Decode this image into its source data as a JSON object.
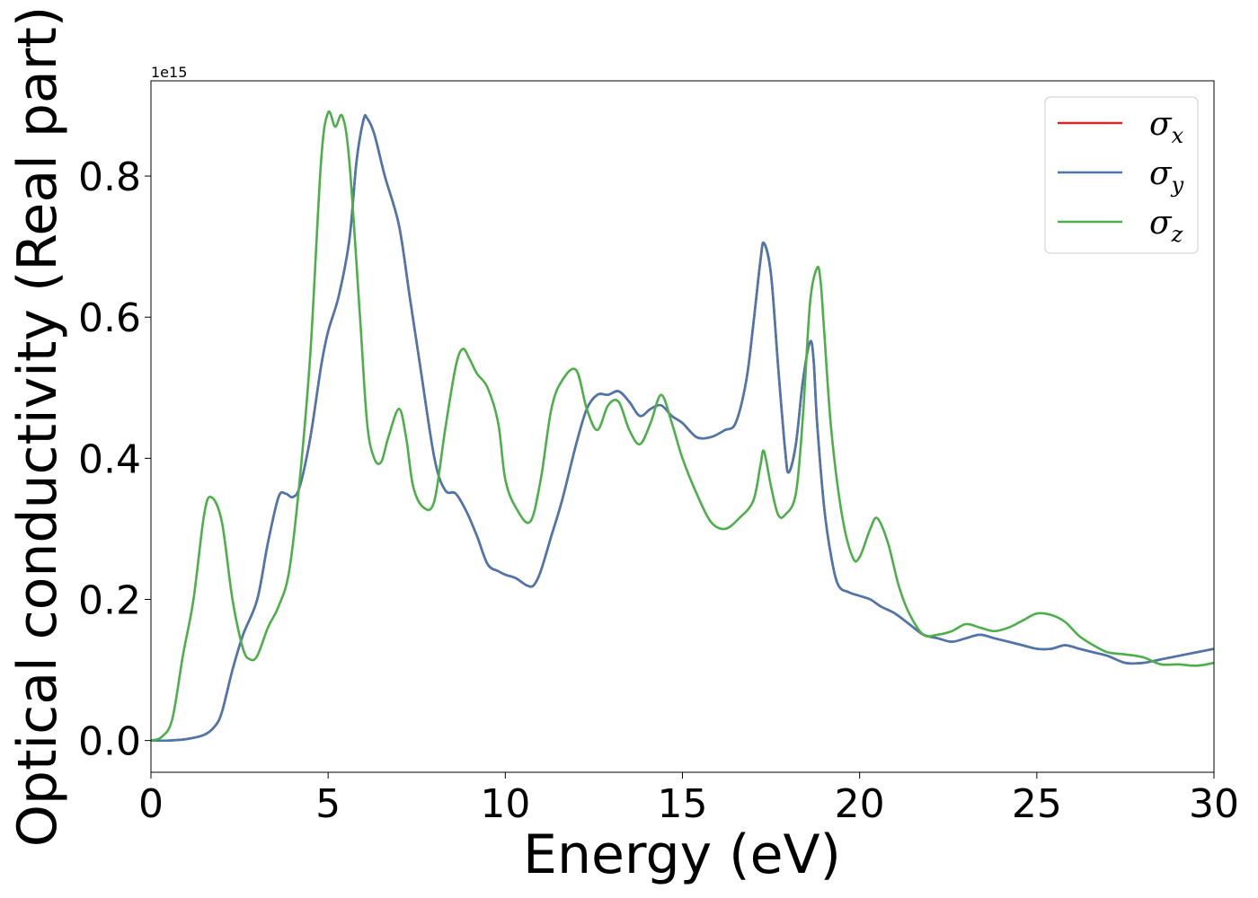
{
  "chart_data": {
    "type": "line",
    "xlabel": "Energy (eV)",
    "ylabel": "Optical conductivity (Real part)",
    "y_offset_label": "1e15",
    "xlim": [
      0,
      30
    ],
    "ylim": [
      -0.045,
      0.935
    ],
    "xticks": [
      0,
      5,
      10,
      15,
      20,
      25,
      30
    ],
    "xtick_labels": [
      "0",
      "5",
      "10",
      "15",
      "20",
      "25",
      "30"
    ],
    "yticks": [
      0.0,
      0.2,
      0.4,
      0.6,
      0.8
    ],
    "ytick_labels": [
      "0.0",
      "0.2",
      "0.4",
      "0.6",
      "0.8"
    ],
    "grid": false,
    "legend_position": "top-right",
    "series": [
      {
        "name": "σx",
        "symbol": "σ",
        "subscript": "x",
        "color": "#d62728",
        "x": [
          0,
          0.5,
          1.0,
          1.5,
          1.8,
          2.0,
          2.3,
          2.6,
          3.0,
          3.3,
          3.6,
          3.8,
          4.0,
          4.2,
          4.5,
          4.8,
          5.0,
          5.3,
          5.6,
          5.8,
          6.0,
          6.1,
          6.3,
          6.6,
          7.0,
          7.3,
          7.6,
          8.0,
          8.3,
          8.6,
          8.9,
          9.2,
          9.5,
          9.8,
          10.0,
          10.3,
          10.6,
          10.8,
          11.0,
          11.3,
          11.6,
          12.0,
          12.3,
          12.6,
          12.9,
          13.2,
          13.5,
          13.8,
          14.1,
          14.4,
          14.7,
          15.0,
          15.4,
          15.8,
          16.2,
          16.5,
          16.8,
          17.0,
          17.2,
          17.3,
          17.5,
          17.7,
          17.9,
          18.0,
          18.2,
          18.4,
          18.6,
          18.7,
          18.8,
          19.0,
          19.2,
          19.4,
          19.7,
          20.0,
          20.3,
          20.6,
          21.0,
          21.4,
          21.8,
          22.2,
          22.6,
          23.0,
          23.4,
          23.8,
          24.2,
          24.6,
          25.0,
          25.4,
          25.8,
          26.2,
          26.6,
          27.0,
          27.5,
          28.0,
          28.5,
          29.0,
          29.5,
          30.0
        ],
        "y": [
          0.0,
          0.0,
          0.002,
          0.008,
          0.02,
          0.04,
          0.1,
          0.15,
          0.2,
          0.28,
          0.345,
          0.35,
          0.345,
          0.36,
          0.43,
          0.53,
          0.58,
          0.63,
          0.71,
          0.82,
          0.88,
          0.882,
          0.86,
          0.8,
          0.73,
          0.63,
          0.53,
          0.4,
          0.355,
          0.35,
          0.325,
          0.29,
          0.25,
          0.24,
          0.235,
          0.23,
          0.22,
          0.22,
          0.24,
          0.29,
          0.34,
          0.42,
          0.47,
          0.49,
          0.49,
          0.495,
          0.48,
          0.46,
          0.47,
          0.475,
          0.46,
          0.45,
          0.43,
          0.43,
          0.44,
          0.45,
          0.51,
          0.59,
          0.68,
          0.705,
          0.66,
          0.53,
          0.41,
          0.38,
          0.42,
          0.51,
          0.565,
          0.54,
          0.45,
          0.33,
          0.26,
          0.22,
          0.21,
          0.205,
          0.2,
          0.19,
          0.18,
          0.165,
          0.15,
          0.145,
          0.14,
          0.145,
          0.15,
          0.145,
          0.14,
          0.135,
          0.13,
          0.13,
          0.135,
          0.13,
          0.125,
          0.12,
          0.11,
          0.11,
          0.115,
          0.12,
          0.125,
          0.13
        ]
      },
      {
        "name": "σy",
        "symbol": "σ",
        "subscript": "y",
        "color": "#4a77ad",
        "x": [
          0,
          0.5,
          1.0,
          1.5,
          1.8,
          2.0,
          2.3,
          2.6,
          3.0,
          3.3,
          3.6,
          3.8,
          4.0,
          4.2,
          4.5,
          4.8,
          5.0,
          5.3,
          5.6,
          5.8,
          6.0,
          6.1,
          6.3,
          6.6,
          7.0,
          7.3,
          7.6,
          8.0,
          8.3,
          8.6,
          8.9,
          9.2,
          9.5,
          9.8,
          10.0,
          10.3,
          10.6,
          10.8,
          11.0,
          11.3,
          11.6,
          12.0,
          12.3,
          12.6,
          12.9,
          13.2,
          13.5,
          13.8,
          14.1,
          14.4,
          14.7,
          15.0,
          15.4,
          15.8,
          16.2,
          16.5,
          16.8,
          17.0,
          17.2,
          17.3,
          17.5,
          17.7,
          17.9,
          18.0,
          18.2,
          18.4,
          18.6,
          18.7,
          18.8,
          19.0,
          19.2,
          19.4,
          19.7,
          20.0,
          20.3,
          20.6,
          21.0,
          21.4,
          21.8,
          22.2,
          22.6,
          23.0,
          23.4,
          23.8,
          24.2,
          24.6,
          25.0,
          25.4,
          25.8,
          26.2,
          26.6,
          27.0,
          27.5,
          28.0,
          28.5,
          29.0,
          29.5,
          30.0
        ],
        "y": [
          0.0,
          0.0,
          0.002,
          0.008,
          0.02,
          0.04,
          0.1,
          0.15,
          0.2,
          0.28,
          0.345,
          0.35,
          0.345,
          0.36,
          0.43,
          0.53,
          0.58,
          0.63,
          0.71,
          0.82,
          0.88,
          0.882,
          0.86,
          0.8,
          0.73,
          0.63,
          0.53,
          0.4,
          0.355,
          0.35,
          0.325,
          0.29,
          0.25,
          0.24,
          0.235,
          0.23,
          0.22,
          0.22,
          0.24,
          0.29,
          0.34,
          0.42,
          0.47,
          0.49,
          0.49,
          0.495,
          0.48,
          0.46,
          0.47,
          0.475,
          0.46,
          0.45,
          0.43,
          0.43,
          0.44,
          0.45,
          0.51,
          0.59,
          0.68,
          0.705,
          0.66,
          0.53,
          0.41,
          0.38,
          0.42,
          0.51,
          0.565,
          0.54,
          0.45,
          0.33,
          0.26,
          0.22,
          0.21,
          0.205,
          0.2,
          0.19,
          0.18,
          0.165,
          0.15,
          0.145,
          0.14,
          0.145,
          0.15,
          0.145,
          0.14,
          0.135,
          0.13,
          0.13,
          0.135,
          0.13,
          0.125,
          0.12,
          0.11,
          0.11,
          0.115,
          0.12,
          0.125,
          0.13
        ]
      },
      {
        "name": "σz",
        "symbol": "σ",
        "subscript": "z",
        "color": "#4daf4a",
        "x": [
          0,
          0.3,
          0.6,
          0.9,
          1.2,
          1.5,
          1.7,
          2.0,
          2.3,
          2.6,
          2.8,
          3.0,
          3.3,
          3.6,
          3.9,
          4.2,
          4.5,
          4.8,
          5.0,
          5.2,
          5.4,
          5.6,
          5.9,
          6.1,
          6.3,
          6.5,
          6.7,
          7.0,
          7.2,
          7.4,
          7.7,
          8.0,
          8.3,
          8.6,
          8.8,
          9.0,
          9.2,
          9.5,
          9.8,
          10.0,
          10.3,
          10.7,
          11.0,
          11.3,
          11.6,
          12.0,
          12.3,
          12.6,
          12.9,
          13.2,
          13.5,
          13.8,
          14.1,
          14.4,
          14.7,
          15.0,
          15.4,
          15.8,
          16.2,
          16.6,
          17.0,
          17.2,
          17.3,
          17.5,
          17.7,
          17.9,
          18.2,
          18.4,
          18.6,
          18.8,
          18.9,
          19.0,
          19.2,
          19.5,
          19.8,
          20.0,
          20.3,
          20.5,
          20.8,
          21.1,
          21.4,
          21.8,
          22.2,
          22.6,
          23.0,
          23.4,
          23.8,
          24.2,
          24.6,
          25.0,
          25.4,
          25.8,
          26.2,
          26.6,
          27.0,
          27.5,
          28.0,
          28.5,
          29.0,
          29.5,
          30.0
        ],
        "y": [
          0.0,
          0.005,
          0.03,
          0.12,
          0.2,
          0.32,
          0.345,
          0.31,
          0.2,
          0.13,
          0.115,
          0.12,
          0.16,
          0.19,
          0.24,
          0.37,
          0.55,
          0.82,
          0.89,
          0.87,
          0.885,
          0.82,
          0.6,
          0.45,
          0.4,
          0.395,
          0.43,
          0.47,
          0.43,
          0.36,
          0.33,
          0.34,
          0.44,
          0.53,
          0.555,
          0.54,
          0.52,
          0.5,
          0.45,
          0.37,
          0.33,
          0.31,
          0.37,
          0.47,
          0.51,
          0.525,
          0.47,
          0.44,
          0.475,
          0.48,
          0.44,
          0.42,
          0.45,
          0.49,
          0.45,
          0.4,
          0.35,
          0.31,
          0.3,
          0.315,
          0.34,
          0.39,
          0.41,
          0.36,
          0.32,
          0.32,
          0.35,
          0.46,
          0.62,
          0.67,
          0.65,
          0.58,
          0.44,
          0.32,
          0.26,
          0.26,
          0.3,
          0.315,
          0.28,
          0.22,
          0.18,
          0.15,
          0.15,
          0.155,
          0.165,
          0.16,
          0.155,
          0.16,
          0.17,
          0.18,
          0.178,
          0.168,
          0.148,
          0.135,
          0.125,
          0.122,
          0.118,
          0.108,
          0.108,
          0.106,
          0.11
        ]
      }
    ]
  }
}
